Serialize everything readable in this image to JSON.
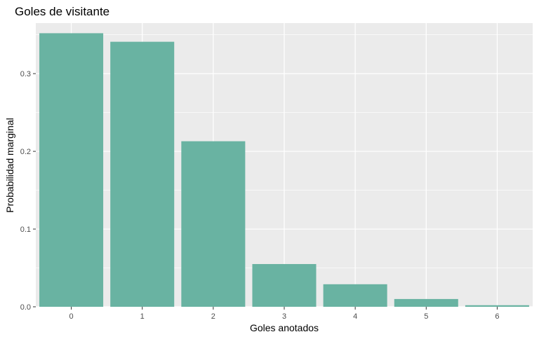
{
  "chart_data": {
    "type": "bar",
    "title": "Goles de visitante",
    "xlabel": "Goles anotados",
    "ylabel": "Probabilidad marginal",
    "categories": [
      "0",
      "1",
      "2",
      "3",
      "4",
      "5",
      "6"
    ],
    "values": [
      0.352,
      0.341,
      0.213,
      0.055,
      0.029,
      0.01,
      0.002
    ],
    "ylim": [
      0,
      0.365
    ],
    "yticks": [
      0.0,
      0.1,
      0.2,
      0.3
    ],
    "ytick_labels": [
      "0.0",
      "0.1",
      "0.2",
      "0.3"
    ],
    "grid": true,
    "legend": "none",
    "colors": {
      "bar": "#69b3a2",
      "panel": "#ebebeb",
      "grid": "#ffffff"
    }
  }
}
